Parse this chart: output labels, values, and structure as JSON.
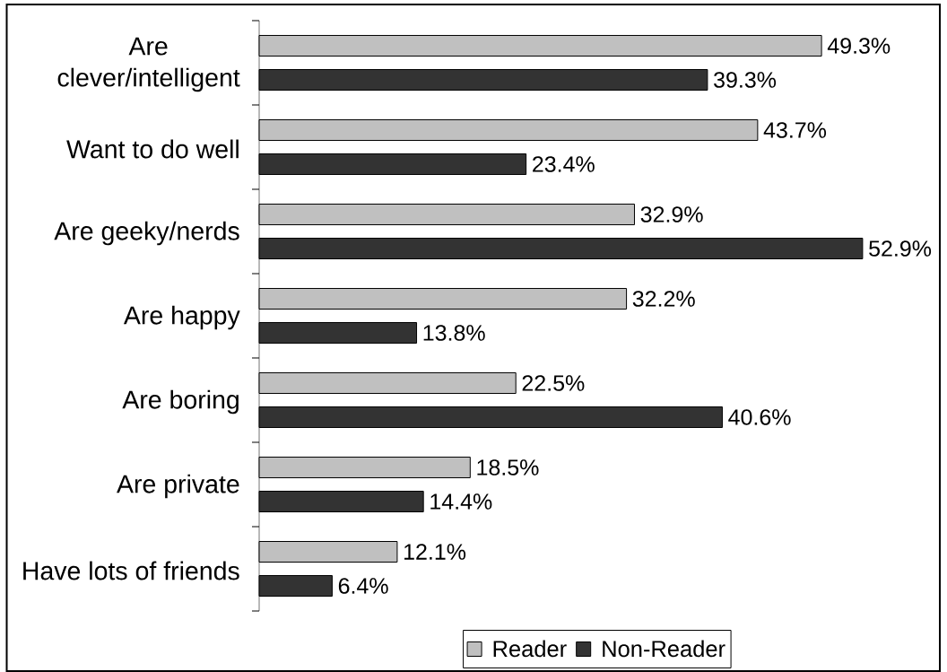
{
  "chart_data": {
    "type": "bar",
    "orientation": "horizontal",
    "categories": [
      "Are clever/intelligent",
      "Want to do well",
      "Are geeky/nerds",
      "Are happy",
      "Are boring",
      "Are private",
      "Have lots of friends"
    ],
    "series": [
      {
        "name": "Reader",
        "color": "#c0c0c0",
        "values": [
          49.3,
          43.7,
          32.9,
          32.2,
          22.5,
          18.5,
          12.1
        ],
        "value_labels": [
          "49.3%",
          "43.7%",
          "32.9%",
          "32.2%",
          "22.5%",
          "18.5%",
          "12.1%"
        ]
      },
      {
        "name": "Non-Reader",
        "color": "#333333",
        "values": [
          39.3,
          23.4,
          52.9,
          13.8,
          40.6,
          14.4,
          6.4
        ],
        "value_labels": [
          "39.3%",
          "23.4%",
          "52.9%",
          "13.8%",
          "40.6%",
          "14.4%",
          "6.4%"
        ]
      }
    ],
    "legend": "bottom",
    "tick_labels": "y"
  }
}
